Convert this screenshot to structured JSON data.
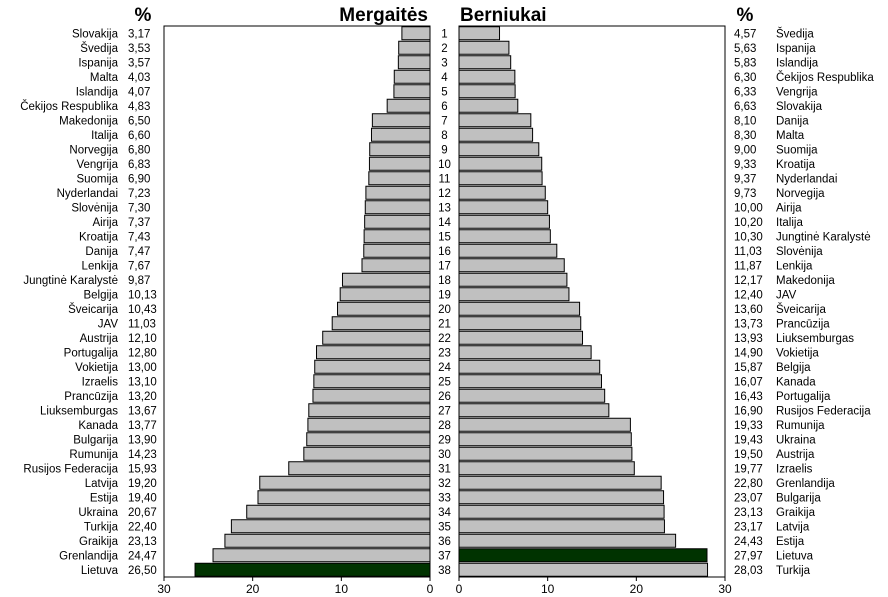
{
  "chart_data": {
    "type": "bar",
    "orientation": "horizontal",
    "layout": "butterfly",
    "ranks": [
      "1",
      "2",
      "3",
      "4",
      "5",
      "6",
      "7",
      "8",
      "9",
      "10",
      "11",
      "12",
      "13",
      "14",
      "15",
      "16",
      "17",
      "18",
      "19",
      "20",
      "21",
      "22",
      "23",
      "24",
      "25",
      "26",
      "27",
      "28",
      "29",
      "30",
      "31",
      "32",
      "33",
      "34",
      "35",
      "36",
      "37",
      "38"
    ],
    "left": {
      "title": "Mergaitės",
      "unit_label": "%",
      "xlim": [
        0,
        30
      ],
      "ticks": [
        "30",
        "20",
        "10",
        "0"
      ],
      "bar_color": "#c0c0c0",
      "highlight_color": "#003300",
      "highlight_index": 37,
      "countries": [
        "Slovakija",
        "Švedija",
        "Ispanija",
        "Malta",
        "Islandija",
        "Čekijos Respublika",
        "Makedonija",
        "Italija",
        "Norvegija",
        "Vengrija",
        "Suomija",
        "Nyderlandai",
        "Slovėnija",
        "Airija",
        "Kroatija",
        "Danija",
        "Lenkija",
        "Jungtinė Karalystė",
        "Belgija",
        "Šveicarija",
        "JAV",
        "Austrija",
        "Portugalija",
        "Vokietija",
        "Izraelis",
        "Prancūzija",
        "Liuksemburgas",
        "Kanada",
        "Bulgarija",
        "Rumunija",
        "Rusijos Federacija",
        "Latvija",
        "Estija",
        "Ukraina",
        "Turkija",
        "Graikija",
        "Grenlandija",
        "Lietuva"
      ],
      "value_labels": [
        "3,17",
        "3,53",
        "3,57",
        "4,03",
        "4,07",
        "4,83",
        "6,50",
        "6,60",
        "6,80",
        "6,83",
        "6,90",
        "7,23",
        "7,30",
        "7,37",
        "7,43",
        "7,47",
        "7,67",
        "9,87",
        "10,13",
        "10,43",
        "11,03",
        "12,10",
        "12,80",
        "13,00",
        "13,10",
        "13,20",
        "13,67",
        "13,77",
        "13,90",
        "14,23",
        "15,93",
        "19,20",
        "19,40",
        "20,67",
        "22,40",
        "23,13",
        "24,47",
        "26,50"
      ],
      "values": [
        3.17,
        3.53,
        3.57,
        4.03,
        4.07,
        4.83,
        6.5,
        6.6,
        6.8,
        6.83,
        6.9,
        7.23,
        7.3,
        7.37,
        7.43,
        7.47,
        7.67,
        9.87,
        10.13,
        10.43,
        11.03,
        12.1,
        12.8,
        13.0,
        13.1,
        13.2,
        13.67,
        13.77,
        13.9,
        14.23,
        15.93,
        19.2,
        19.4,
        20.67,
        22.4,
        23.13,
        24.47,
        26.5
      ]
    },
    "right": {
      "title": "Berniukai",
      "unit_label": "%",
      "xlim": [
        0,
        30
      ],
      "ticks": [
        "0",
        "10",
        "20",
        "30"
      ],
      "bar_color": "#c0c0c0",
      "highlight_color": "#003300",
      "highlight_index": 36,
      "countries": [
        "Švedija",
        "Ispanija",
        "Islandija",
        "Čekijos Respublika",
        "Vengrija",
        "Slovakija",
        "Danija",
        "Malta",
        "Suomija",
        "Kroatija",
        "Nyderlandai",
        "Norvegija",
        "Airija",
        "Italija",
        "Jungtinė Karalystė",
        "Slovėnija",
        "Lenkija",
        "Makedonija",
        "JAV",
        "Šveicarija",
        "Prancūzija",
        "Liuksemburgas",
        "Vokietija",
        "Belgija",
        "Kanada",
        "Portugalija",
        "Rusijos Federacija",
        "Rumunija",
        "Ukraina",
        "Austrija",
        "Izraelis",
        "Grenlandija",
        "Bulgarija",
        "Graikija",
        "Latvija",
        "Estija",
        "Lietuva",
        "Turkija"
      ],
      "value_labels": [
        "4,57",
        "5,63",
        "5,83",
        "6,30",
        "6,33",
        "6,63",
        "8,10",
        "8,30",
        "9,00",
        "9,33",
        "9,37",
        "9,73",
        "10,00",
        "10,20",
        "10,30",
        "11,03",
        "11,87",
        "12,17",
        "12,40",
        "13,60",
        "13,73",
        "13,93",
        "14,90",
        "15,87",
        "16,07",
        "16,43",
        "16,90",
        "19,33",
        "19,43",
        "19,50",
        "19,77",
        "22,80",
        "23,07",
        "23,13",
        "23,17",
        "24,43",
        "27,97",
        "28,03"
      ],
      "values": [
        4.57,
        5.63,
        5.83,
        6.3,
        6.33,
        6.63,
        8.1,
        8.3,
        9.0,
        9.33,
        9.37,
        9.73,
        10.0,
        10.2,
        10.3,
        11.03,
        11.87,
        12.17,
        12.4,
        13.6,
        13.73,
        13.93,
        14.9,
        15.87,
        16.07,
        16.43,
        16.9,
        19.33,
        19.43,
        19.5,
        19.77,
        22.8,
        23.07,
        23.13,
        23.17,
        24.43,
        27.97,
        28.03
      ]
    }
  }
}
